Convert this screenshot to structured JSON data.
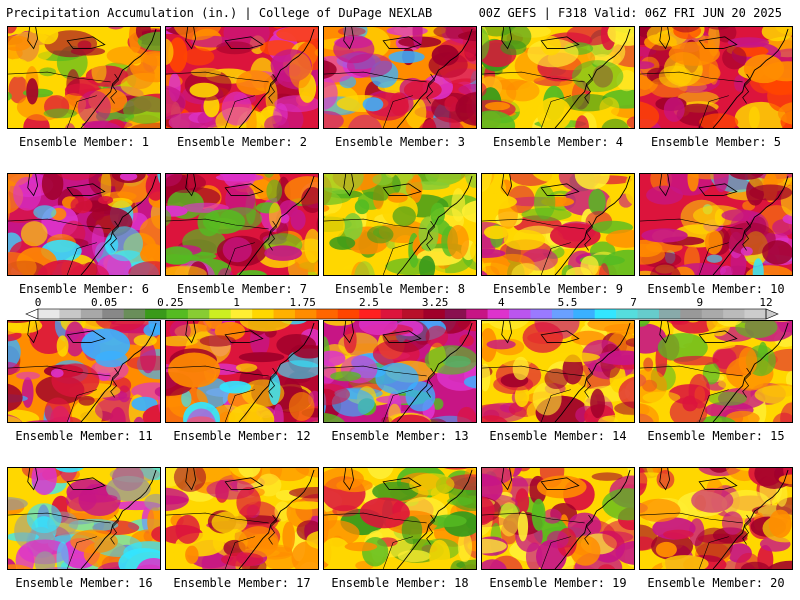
{
  "header": {
    "title": "Precipitation Accumulation (in.) | College of DuPage NEXLAB",
    "run_info": "00Z GEFS | F318 Valid: 06Z FRI JUN 20 2025"
  },
  "panels": [
    {
      "label": "Ensemble Member: 1",
      "palette": [
        "#ffd700",
        "#ff8c00",
        "#dc143c",
        "#a0002a",
        "#c71585",
        "#55bb22",
        "#ffd700"
      ]
    },
    {
      "label": "Ensemble Member: 2",
      "palette": [
        "#dc143c",
        "#ff4500",
        "#a0002a",
        "#c71585",
        "#dd33cc",
        "#ff8c00",
        "#ffd700"
      ]
    },
    {
      "label": "Ensemble Member: 3",
      "palette": [
        "#ff8c00",
        "#dc143c",
        "#c71585",
        "#dd33cc",
        "#3ab0ff",
        "#ffd700",
        "#a0002a"
      ]
    },
    {
      "label": "Ensemble Member: 4",
      "palette": [
        "#ffd700",
        "#ffee33",
        "#ff8c00",
        "#55bb22",
        "#3a9a1a",
        "#dc143c",
        "#ffd700"
      ]
    },
    {
      "label": "Ensemble Member: 5",
      "palette": [
        "#dc143c",
        "#ff8c00",
        "#ffd700",
        "#c71585",
        "#a0002a",
        "#ff4500",
        "#ffd700"
      ]
    },
    {
      "label": "Ensemble Member: 6",
      "palette": [
        "#c71585",
        "#dc143c",
        "#dd33cc",
        "#a0002a",
        "#33e6ff",
        "#ff8c00",
        "#ffd700"
      ]
    },
    {
      "label": "Ensemble Member: 7",
      "palette": [
        "#dc143c",
        "#ff8c00",
        "#c71585",
        "#dd33cc",
        "#a0002a",
        "#ffd700",
        "#55bb22"
      ]
    },
    {
      "label": "Ensemble Member: 8",
      "palette": [
        "#ffd700",
        "#ffee33",
        "#88cc33",
        "#55bb22",
        "#ff8c00",
        "#3a9a1a",
        "#ffd700"
      ]
    },
    {
      "label": "Ensemble Member: 9",
      "palette": [
        "#ffd700",
        "#ff8c00",
        "#dc143c",
        "#ffee33",
        "#55bb22",
        "#c71585",
        "#ffd700"
      ]
    },
    {
      "label": "Ensemble Member: 10",
      "palette": [
        "#dc143c",
        "#c71585",
        "#ff8c00",
        "#a0002a",
        "#dd33cc",
        "#33e6ff",
        "#ffd700"
      ]
    },
    {
      "label": "Ensemble Member: 11",
      "palette": [
        "#ff8c00",
        "#dc143c",
        "#c71585",
        "#dd33cc",
        "#3ab0ff",
        "#ffd700",
        "#a0002a"
      ]
    },
    {
      "label": "Ensemble Member: 12",
      "palette": [
        "#dc143c",
        "#a0002a",
        "#c71585",
        "#ff8c00",
        "#33e6ff",
        "#ffd700",
        "#dd33cc"
      ]
    },
    {
      "label": "Ensemble Member: 13",
      "palette": [
        "#c71585",
        "#dc143c",
        "#a0002a",
        "#dd33cc",
        "#ffd700",
        "#55bb22",
        "#3ab0ff"
      ]
    },
    {
      "label": "Ensemble Member: 14",
      "palette": [
        "#ffd700",
        "#ff8c00",
        "#dc143c",
        "#c71585",
        "#ffee33",
        "#a0002a",
        "#ffd700"
      ]
    },
    {
      "label": "Ensemble Member: 15",
      "palette": [
        "#ffd700",
        "#ffee33",
        "#ff8c00",
        "#dc143c",
        "#55bb22",
        "#ffd700",
        "#c71585"
      ]
    },
    {
      "label": "Ensemble Member: 16",
      "palette": [
        "#ffd700",
        "#ff8c00",
        "#c71585",
        "#dd33cc",
        "#33e6ff",
        "#999999",
        "#dc143c"
      ]
    },
    {
      "label": "Ensemble Member: 17",
      "palette": [
        "#ffd700",
        "#ff8c00",
        "#dc143c",
        "#c71585",
        "#ffee33",
        "#a0002a",
        "#ffd700"
      ]
    },
    {
      "label": "Ensemble Member: 18",
      "palette": [
        "#ffd700",
        "#ffee33",
        "#55bb22",
        "#3a9a1a",
        "#ff8c00",
        "#dc143c",
        "#ffd700"
      ]
    },
    {
      "label": "Ensemble Member: 19",
      "palette": [
        "#ffd700",
        "#dc143c",
        "#ff8c00",
        "#c71585",
        "#55bb22",
        "#a0002a",
        "#ffee33"
      ]
    },
    {
      "label": "Ensemble Member: 20",
      "palette": [
        "#ffd700",
        "#ff8c00",
        "#dc143c",
        "#a0002a",
        "#c71585",
        "#ffee33",
        "#ffd700"
      ]
    }
  ],
  "colorbar": {
    "tick_labels": [
      "0",
      "0.05",
      "0.25",
      "1",
      "1.75",
      "2.5",
      "3.25",
      "4",
      "5.5",
      "7",
      "9",
      "12"
    ],
    "colors": [
      "#e8e8e8",
      "#c8c8c8",
      "#a8a8a8",
      "#888888",
      "#6a8e5a",
      "#3a9a1a",
      "#55bb22",
      "#88cc33",
      "#ccee22",
      "#ffee33",
      "#ffd700",
      "#ffb000",
      "#ff8c00",
      "#ff6600",
      "#ff4500",
      "#ff2020",
      "#dc143c",
      "#b8102a",
      "#a0002a",
      "#8a1050",
      "#c71585",
      "#dd33cc",
      "#bb55ee",
      "#9a7aff",
      "#6aa0ff",
      "#3ab0ff",
      "#33e6ff",
      "#55dddd",
      "#66cccc",
      "#88aaaa",
      "#999999",
      "#aaaaaa",
      "#bbbbbb",
      "#cccccc"
    ]
  }
}
